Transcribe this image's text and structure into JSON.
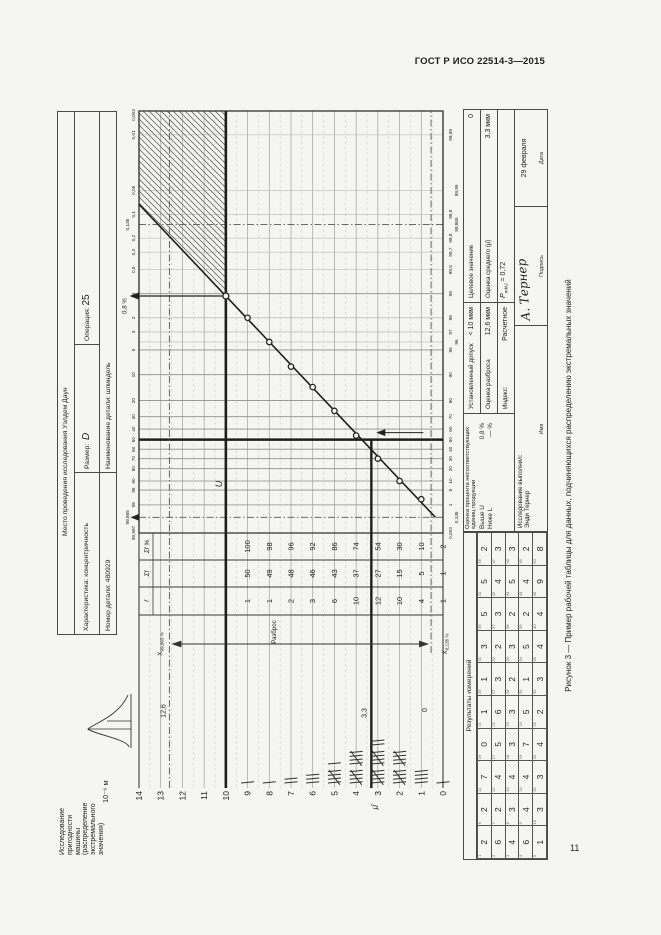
{
  "page": {
    "header": "ГОСТ Р ИСО 22514-3—2015",
    "number": "11"
  },
  "caption": "Рисунок 3 — Пример рабочей таблицы для данных, подчиняющихся распределению экстремальных значений",
  "study": {
    "title": "Исследование\nпригодности\nмашины\n(распределение\nэкстремального\nзначения)",
    "unit": "10⁻⁶ м"
  },
  "form": {
    "location": "Место проведения исследования Уэлдем Даун",
    "characteristic": "Характеристика: концентричность",
    "size_label": "Размер:",
    "size_value": "D",
    "operation_label": "Операция:",
    "operation_value": "25",
    "part_number": "Номер детали: 480929",
    "part_name": "Наименование детали: шпиндель"
  },
  "results": {
    "caption": "Результаты измерений",
    "values": [
      [
        2,
        2,
        7,
        0,
        1,
        1,
        3,
        5,
        5,
        2
      ],
      [
        6,
        2,
        4,
        5,
        6,
        3,
        2,
        3,
        4,
        3
      ],
      [
        4,
        3,
        4,
        3,
        3,
        2,
        3,
        2,
        5,
        3
      ],
      [
        6,
        4,
        4,
        7,
        5,
        1,
        5,
        2,
        4,
        2
      ],
      [
        1,
        3,
        3,
        4,
        2,
        3,
        4,
        4,
        9,
        8
      ]
    ]
  },
  "evaluation": {
    "nonconf_title": "Оценка процента несоответствующих единиц продукции",
    "above_label": "Выше U",
    "above_value": "0,8 %",
    "below_label": "Ниже L",
    "below_value": "—  %",
    "tolerance_label": "Установленный допуск",
    "tolerance_value": "< 10 мкм",
    "spread_label": "Оценка разброса",
    "spread_value": "12,6 мкм",
    "mean_label": "Оценка среднего (μ̂)",
    "mean_value": "3,3 мкм",
    "target_label": "Целевое значение",
    "target_value": "0",
    "index_label": "Индекс:",
    "index_mode": "Расчетное",
    "index_p": "P",
    "index_p_sub": "mkU",
    "index_value": "= 0,72",
    "performed_label": "Исследование выполнил:",
    "performed_name": "Энди Тернер",
    "signature": "А. Тернер",
    "date_value": "29 февраля",
    "name_caption": "Имя",
    "sign_caption": "Подпись",
    "date_caption": "Дата"
  },
  "chart_data": {
    "type": "scatter",
    "paper": "вероятностная сетка распределения экстремальных значений",
    "y_axis": {
      "label": "10⁻⁶ м",
      "min": 0,
      "max": 14,
      "ticks": [
        14,
        13,
        12,
        11,
        10,
        9,
        8,
        7,
        6,
        5,
        4,
        3,
        2,
        1,
        0
      ],
      "mu_symbol": "μ̂"
    },
    "x_axis_bottom": {
      "meaning": "суммарный %",
      "ticks": [
        {
          "t": "0,003",
          "f": 0.003
        },
        {
          "t": "0,135",
          "f": 0.135,
          "r": 1
        },
        {
          "t": "1",
          "f": 1
        },
        {
          "t": "5",
          "f": 5
        },
        {
          "t": "10",
          "f": 10
        },
        {
          "t": "20",
          "f": 20
        },
        {
          "t": "30",
          "f": 30
        },
        {
          "t": "40",
          "f": 40
        },
        {
          "t": "50",
          "f": 50
        },
        {
          "t": "60",
          "f": 60
        },
        {
          "t": "70",
          "f": 70
        },
        {
          "t": "80",
          "f": 80
        },
        {
          "t": "90",
          "f": 90
        },
        {
          "t": "95",
          "f": 95
        },
        {
          "t": "96",
          "f": 96,
          "r": 1
        },
        {
          "t": "97",
          "f": 97
        },
        {
          "t": "98",
          "f": 98
        },
        {
          "t": "99",
          "f": 99
        },
        {
          "t": "99,5",
          "f": 99.5
        },
        {
          "t": "99,7",
          "f": 99.7
        },
        {
          "t": "99,8",
          "f": 99.8
        },
        {
          "t": "99,865",
          "f": 99.865,
          "r": 1
        },
        {
          "t": "99,9",
          "f": 99.9
        },
        {
          "t": "99,95",
          "f": 99.95,
          "r": 1
        },
        {
          "t": "99,99",
          "f": 99.99
        }
      ]
    },
    "x_axis_top": {
      "meaning": "% превышения",
      "ticks": [
        {
          "t": "99,997",
          "f": 0.003
        },
        {
          "t": "99,865",
          "f": 0.135,
          "r": 1
        },
        {
          "t": "99",
          "f": 1
        },
        {
          "t": "95",
          "f": 5
        },
        {
          "t": "90",
          "f": 10
        },
        {
          "t": "80",
          "f": 20
        },
        {
          "t": "70",
          "f": 30
        },
        {
          "t": "60",
          "f": 40
        },
        {
          "t": "50",
          "f": 50
        },
        {
          "t": "40",
          "f": 60
        },
        {
          "t": "30",
          "f": 70
        },
        {
          "t": "20",
          "f": 80
        },
        {
          "t": "10",
          "f": 90
        },
        {
          "t": "5",
          "f": 95
        },
        {
          "t": "3",
          "f": 97
        },
        {
          "t": "2",
          "f": 98
        },
        {
          "t": "1",
          "f": 99
        },
        {
          "t": "0,5",
          "f": 99.5
        },
        {
          "t": "0,3",
          "f": 99.7
        },
        {
          "t": "0,2",
          "f": 99.8
        },
        {
          "t": "0,135",
          "f": 99.865,
          "r": 1
        },
        {
          "t": "0,1",
          "f": 99.9
        },
        {
          "t": "0,05",
          "f": 99.95
        },
        {
          "t": "0,01",
          "f": 99.99
        },
        {
          "t": "0,003",
          "f": 99.997
        }
      ]
    },
    "points": [
      {
        "pct": 2,
        "value": 1
      },
      {
        "pct": 10,
        "value": 2
      },
      {
        "pct": 30,
        "value": 3
      },
      {
        "pct": 54,
        "value": 4
      },
      {
        "pct": 74,
        "value": 5
      },
      {
        "pct": 86,
        "value": 6
      },
      {
        "pct": 92,
        "value": 7
      },
      {
        "pct": 96,
        "value": 8
      },
      {
        "pct": 98,
        "value": 9
      }
    ],
    "fit_line": {
      "from": {
        "pct": 0.135,
        "value": 0.35
      },
      "to": {
        "pct": 99.925,
        "value": 14
      }
    },
    "tolerance_U": 10,
    "mean_estimate": 3.3,
    "spread_estimate": 12.6,
    "exceedance_pct": 0.8,
    "frequency_table": {
      "headers": [
        "f",
        "Σf",
        "Σf %"
      ],
      "rows": [
        [
          9,
          1,
          50,
          100
        ],
        [
          8,
          1,
          49,
          98
        ],
        [
          7,
          2,
          48,
          96
        ],
        [
          6,
          3,
          46,
          92
        ],
        [
          5,
          6,
          43,
          86
        ],
        [
          4,
          10,
          37,
          74
        ],
        [
          3,
          12,
          27,
          54
        ],
        [
          2,
          10,
          15,
          30
        ],
        [
          1,
          4,
          5,
          10
        ],
        [
          0,
          1,
          1,
          2
        ]
      ]
    },
    "tallies": [
      {
        "value": 9,
        "count": 1
      },
      {
        "value": 8,
        "count": 1
      },
      {
        "value": 7,
        "count": 2
      },
      {
        "value": 6,
        "count": 3
      },
      {
        "value": 5,
        "count": 6
      },
      {
        "value": 4,
        "count": 10
      },
      {
        "value": 3,
        "count": 12
      },
      {
        "value": 2,
        "count": 10
      },
      {
        "value": 1,
        "count": 4
      },
      {
        "value": 0,
        "count": 1
      }
    ],
    "annotations": {
      "U_label": "U",
      "pct_above": "0,8 %",
      "spread_label": "Разброс",
      "q_x": "X",
      "q_high_sub": "99,865 %",
      "q_low_sub": "0,135 %",
      "read_spread": "12,6",
      "read_mean": "3,3",
      "read_low": "0"
    }
  }
}
